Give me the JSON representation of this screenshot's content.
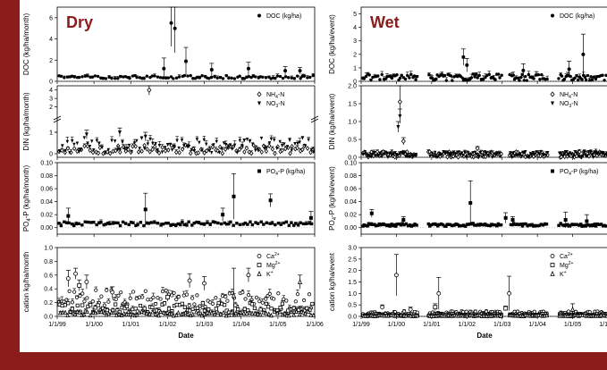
{
  "chart_data": [
    {
      "id": "dry-doc",
      "type": "scatter",
      "panel_title": "Dry",
      "ylabel": "DOC (kg/ha/month)",
      "ylim": [
        0,
        7
      ],
      "yticks": [
        0,
        2,
        4,
        6
      ],
      "xlim": [
        1999.0,
        2006.0
      ],
      "xticks": [],
      "legend": [
        {
          "marker": "filled-circle",
          "label": "DOC (kg/ha)"
        }
      ],
      "legend_position": "top-right",
      "series": [
        {
          "marker": "filled-circle",
          "base": 0.4,
          "jitter": 0.15,
          "errbase": 0.15,
          "seed": 11,
          "spikes": [
            [
              2002.1,
              5.5,
              2.2
            ],
            [
              2002.2,
              5.0,
              2.3
            ],
            [
              2001.9,
              1.2,
              1.0
            ],
            [
              2002.5,
              1.9,
              1.3
            ],
            [
              2003.2,
              1.1,
              0.6
            ],
            [
              2004.2,
              1.2,
              0.6
            ],
            [
              2005.2,
              1.0,
              0.4
            ],
            [
              2005.6,
              1.0,
              0.3
            ]
          ]
        }
      ]
    },
    {
      "id": "dry-din",
      "type": "scatter",
      "ylabel": "DIN (kg/ha/month)",
      "ylim_lower": [
        0,
        1.5
      ],
      "yticks_lower": [
        0,
        1
      ],
      "ylim_upper": [
        1,
        4.5
      ],
      "yticks_upper": [
        1,
        2,
        3,
        4
      ],
      "axis_break": true,
      "xlim": [
        1999.0,
        2006.0
      ],
      "xticks": [],
      "legend": [
        {
          "marker": "open-diamond",
          "label": "NH4-N"
        },
        {
          "marker": "filled-triangle-down",
          "label": "NO3-N"
        }
      ],
      "legend_position": "top-right",
      "series": [
        {
          "marker": "open-diamond",
          "base": 0.2,
          "jitter": 0.2,
          "errbase": 0.1,
          "seed": 21,
          "spikes": [
            [
              2001.5,
              4.0,
              0.6
            ]
          ]
        },
        {
          "marker": "filled-triangle-down",
          "base": 0.4,
          "jitter": 0.35,
          "errbase": 0.15,
          "seed": 22,
          "spikes": [
            [
              1999.8,
              0.9,
              0.2
            ],
            [
              2000.7,
              1.0,
              0.2
            ],
            [
              2001.4,
              0.8,
              0.2
            ]
          ]
        }
      ]
    },
    {
      "id": "dry-po4",
      "type": "scatter",
      "ylabel": "PO4-P (kg/ha/month)",
      "ylim": [
        -0.01,
        0.1
      ],
      "yticks": [
        0.0,
        0.02,
        0.04,
        0.06,
        0.08,
        0.1
      ],
      "xlim": [
        1999.0,
        2006.0
      ],
      "xticks": [],
      "legend": [
        {
          "marker": "filled-square",
          "label": "PO4-P (kg/ha)"
        }
      ],
      "legend_position": "top-right",
      "series": [
        {
          "marker": "filled-square",
          "base": 0.006,
          "jitter": 0.003,
          "errbase": 0.003,
          "seed": 31,
          "spikes": [
            [
              1999.3,
              0.018,
              0.012
            ],
            [
              2001.4,
              0.028,
              0.025
            ],
            [
              2003.8,
              0.048,
              0.035
            ],
            [
              2004.8,
              0.042,
              0.01
            ],
            [
              2003.5,
              0.02,
              0.01
            ],
            [
              2005.9,
              0.015,
              0.01
            ]
          ]
        }
      ]
    },
    {
      "id": "dry-cation",
      "type": "scatter",
      "ylabel": "cation kg/ha/month",
      "ylim": [
        0,
        1.0
      ],
      "yticks": [
        0.0,
        0.2,
        0.4,
        0.6,
        0.8,
        1.0
      ],
      "xlim": [
        1999.0,
        2006.0
      ],
      "xticks": [
        "1/1/99",
        "1/1/00",
        "1/1/01",
        "1/1/02",
        "1/1/03",
        "1/1/04",
        "1/1/05",
        "1/1/06"
      ],
      "xlabel": "Date",
      "legend": [
        {
          "marker": "open-circle",
          "label": "Ca2+"
        },
        {
          "marker": "open-square",
          "label": "Mg2+"
        },
        {
          "marker": "open-triangle",
          "label": "K+"
        }
      ],
      "legend_position": "top-right",
      "series": [
        {
          "marker": "open-circle",
          "base": 0.25,
          "jitter": 0.1,
          "errbase": 0.05,
          "seed": 41,
          "spikes": [
            [
              1999.3,
              0.55,
              0.12
            ],
            [
              1999.5,
              0.62,
              0.08
            ],
            [
              1999.8,
              0.5,
              0.1
            ],
            [
              2000.5,
              0.35,
              0.08
            ],
            [
              2002.6,
              0.52,
              0.1
            ],
            [
              2003.0,
              0.48,
              0.1
            ],
            [
              2004.2,
              0.6,
              0.1
            ]
          ]
        },
        {
          "marker": "open-square",
          "base": 0.12,
          "jitter": 0.08,
          "errbase": 0.04,
          "seed": 42,
          "spikes": [
            [
              1999.6,
              0.45,
              0.08
            ],
            [
              2002.0,
              0.28,
              0.06
            ]
          ]
        },
        {
          "marker": "open-triangle",
          "base": 0.04,
          "jitter": 0.03,
          "errbase": 0.02,
          "seed": 43,
          "spikes": [
            [
              2003.8,
              0.3,
              0.4
            ],
            [
              2005.6,
              0.5,
              0.1
            ]
          ]
        }
      ]
    },
    {
      "id": "wet-doc",
      "type": "scatter",
      "panel_title": "Wet",
      "ylabel": "DOC (kg/ha/event)",
      "ylim": [
        0,
        5.5
      ],
      "yticks": [
        0,
        1,
        2,
        3,
        4,
        5
      ],
      "xlim": [
        1999.0,
        2006.0
      ],
      "xticks": [],
      "legend": [
        {
          "marker": "filled-circle",
          "label": "DOC (kg/ha)"
        }
      ],
      "legend_position": "top-right",
      "series": [
        {
          "marker": "filled-circle",
          "base": 0.3,
          "jitter": 0.25,
          "errbase": 0.2,
          "seed": 51,
          "spikes": [
            [
              2001.9,
              1.8,
              0.6
            ],
            [
              2002.0,
              1.2,
              0.5
            ],
            [
              2003.6,
              0.8,
              0.5
            ],
            [
              2005.3,
              2.0,
              1.5
            ],
            [
              2004.9,
              0.9,
              0.6
            ]
          ]
        }
      ],
      "gaps": [
        [
          2000.6,
          2000.9
        ],
        [
          2003.0,
          2003.2
        ],
        [
          2004.3,
          2004.6
        ]
      ]
    },
    {
      "id": "wet-din",
      "type": "scatter",
      "ylabel": "DIN (kg/ha/event)",
      "ylim": [
        0,
        2.0
      ],
      "yticks": [
        0.0,
        0.5,
        1.0,
        1.5,
        2.0
      ],
      "xlim": [
        1999.0,
        2006.0
      ],
      "xticks": [],
      "legend": [
        {
          "marker": "open-diamond",
          "label": "NH4-N"
        },
        {
          "marker": "filled-triangle-down",
          "label": "NO3-N"
        }
      ],
      "legend_position": "top-right",
      "series": [
        {
          "marker": "open-diamond",
          "base": 0.08,
          "jitter": 0.08,
          "errbase": 0.05,
          "seed": 61,
          "spikes": [
            [
              2000.1,
              1.55,
              0.45
            ],
            [
              2000.2,
              0.45,
              0.1
            ],
            [
              2002.3,
              0.25,
              0.05
            ]
          ]
        },
        {
          "marker": "filled-triangle-down",
          "base": 0.08,
          "jitter": 0.08,
          "errbase": 0.05,
          "seed": 62,
          "spikes": [
            [
              2000.1,
              1.15,
              0.2
            ],
            [
              2000.05,
              0.85,
              0.15
            ]
          ]
        }
      ],
      "gaps": [
        [
          2000.6,
          2000.9
        ],
        [
          2003.0,
          2003.2
        ],
        [
          2004.3,
          2004.6
        ]
      ]
    },
    {
      "id": "wet-po4",
      "type": "scatter",
      "ylabel": "PO4-P (kg/ha/event)",
      "ylim": [
        -0.01,
        0.1
      ],
      "yticks": [
        0.0,
        0.02,
        0.04,
        0.06,
        0.08,
        0.1
      ],
      "xlim": [
        1999.0,
        2006.0
      ],
      "xticks": [],
      "legend": [
        {
          "marker": "filled-square",
          "label": "PO4-P (kg/ha)"
        }
      ],
      "legend_position": "top-right",
      "series": [
        {
          "marker": "filled-square",
          "base": 0.004,
          "jitter": 0.002,
          "errbase": 0.002,
          "seed": 71,
          "spikes": [
            [
              1999.3,
              0.022,
              0.006
            ],
            [
              2000.2,
              0.012,
              0.005
            ],
            [
              2002.1,
              0.038,
              0.034
            ],
            [
              2003.1,
              0.015,
              0.008
            ],
            [
              2003.3,
              0.012,
              0.005
            ],
            [
              2004.8,
              0.012,
              0.012
            ],
            [
              2005.4,
              0.01,
              0.01
            ]
          ]
        }
      ],
      "gaps": [
        [
          2000.6,
          2000.9
        ],
        [
          2003.0,
          2003.2
        ],
        [
          2004.3,
          2004.6
        ]
      ]
    },
    {
      "id": "wet-cation",
      "type": "scatter",
      "ylabel": "cation kg/ha/event",
      "ylim": [
        0,
        3.0
      ],
      "yticks": [
        0.0,
        0.5,
        1.0,
        1.5,
        2.0,
        2.5,
        3.0
      ],
      "xlim": [
        1999.0,
        2006.0
      ],
      "xticks": [
        "1/1/99",
        "1/1/00",
        "1/1/01",
        "1/1/02",
        "1/1/03",
        "1/1/04",
        "1/1/05",
        "1/1/06"
      ],
      "xlabel": "Date",
      "legend": [
        {
          "marker": "open-circle",
          "label": "Ca2+"
        },
        {
          "marker": "open-square",
          "label": "Mg2+"
        },
        {
          "marker": "open-triangle",
          "label": "K+"
        }
      ],
      "legend_position": "top-right",
      "series": [
        {
          "marker": "open-circle",
          "base": 0.12,
          "jitter": 0.1,
          "errbase": 0.06,
          "seed": 81,
          "spikes": [
            [
              2000.0,
              1.8,
              0.9
            ],
            [
              2001.2,
              1.0,
              0.7
            ],
            [
              2003.2,
              1.0,
              0.75
            ],
            [
              1999.6,
              0.4,
              0.1
            ],
            [
              2000.4,
              0.3,
              0.1
            ]
          ]
        },
        {
          "marker": "open-square",
          "base": 0.06,
          "jitter": 0.05,
          "errbase": 0.03,
          "seed": 82,
          "spikes": [
            [
              2001.1,
              0.4,
              0.15
            ],
            [
              2003.1,
              0.35,
              0.1
            ]
          ]
        },
        {
          "marker": "open-triangle",
          "base": 0.03,
          "jitter": 0.02,
          "errbase": 0.02,
          "seed": 83,
          "spikes": [
            [
              2005.0,
              0.3,
              0.25
            ]
          ]
        }
      ],
      "gaps": [
        [
          2000.6,
          2000.9
        ],
        [
          2003.0,
          2003.2
        ],
        [
          2004.3,
          2004.6
        ]
      ]
    }
  ]
}
